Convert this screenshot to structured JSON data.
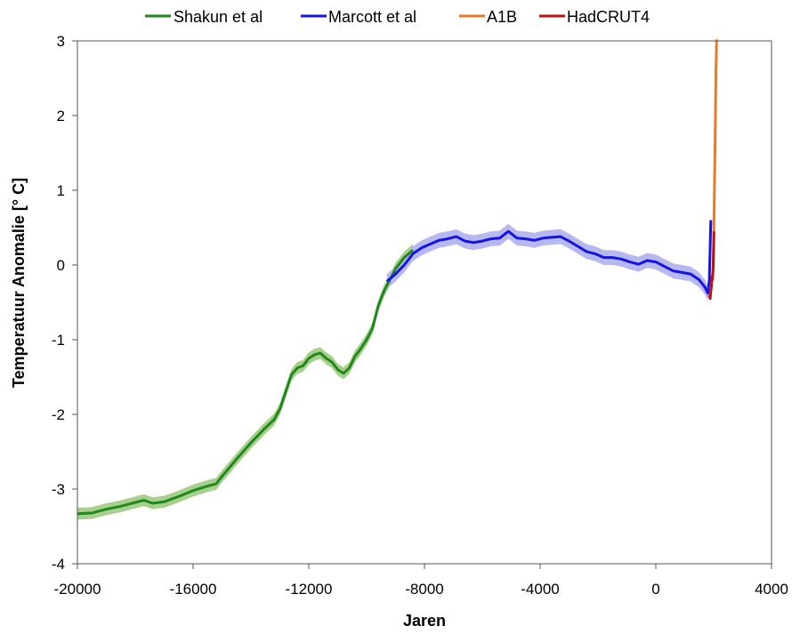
{
  "chart_data": {
    "type": "line",
    "title": "",
    "xlabel": "Jaren",
    "ylabel": "Temperatuur Anomalie [° C]",
    "xlim": [
      -20000,
      4000
    ],
    "ylim": [
      -4,
      3
    ],
    "x_ticks": [
      "-20000",
      "-16000",
      "-12000",
      "-8000",
      "-4000",
      "0",
      "4000"
    ],
    "y_ticks": [
      "3",
      "2",
      "1",
      "0",
      "-1",
      "-2",
      "-3",
      "-4"
    ],
    "grid": false,
    "legend_position": "top",
    "series": [
      {
        "name": "Shakun et al",
        "color": "#1e8a1e",
        "band_color": "#a9cf8c",
        "band_halfwidth": 0.08,
        "x": [
          -20000,
          -19500,
          -19000,
          -18500,
          -18000,
          -17700,
          -17400,
          -17000,
          -16500,
          -16000,
          -15500,
          -15200,
          -15000,
          -14500,
          -14000,
          -13500,
          -13200,
          -13000,
          -12800,
          -12600,
          -12400,
          -12200,
          -12000,
          -11800,
          -11600,
          -11400,
          -11200,
          -11000,
          -10800,
          -10600,
          -10400,
          -10200,
          -10000,
          -9800,
          -9600,
          -9400,
          -9200,
          -9000,
          -8700,
          -8400
        ],
        "y": [
          -3.33,
          -3.32,
          -3.27,
          -3.23,
          -3.18,
          -3.15,
          -3.19,
          -3.17,
          -3.1,
          -3.02,
          -2.96,
          -2.93,
          -2.83,
          -2.6,
          -2.38,
          -2.18,
          -2.07,
          -1.93,
          -1.7,
          -1.47,
          -1.38,
          -1.35,
          -1.25,
          -1.2,
          -1.18,
          -1.25,
          -1.3,
          -1.4,
          -1.45,
          -1.38,
          -1.22,
          -1.12,
          -1.0,
          -0.85,
          -0.55,
          -0.35,
          -0.2,
          -0.05,
          0.1,
          0.2
        ]
      },
      {
        "name": "Marcott et al",
        "color": "#1414e6",
        "band_color": "#b8b8f0",
        "band_halfwidth": 0.1,
        "x": [
          -9300,
          -9000,
          -8700,
          -8400,
          -8100,
          -7800,
          -7500,
          -7200,
          -6900,
          -6600,
          -6300,
          -6000,
          -5700,
          -5400,
          -5100,
          -4800,
          -4500,
          -4200,
          -3900,
          -3600,
          -3300,
          -3000,
          -2700,
          -2400,
          -2100,
          -1800,
          -1500,
          -1200,
          -900,
          -600,
          -300,
          0,
          300,
          600,
          900,
          1200,
          1500,
          1700,
          1800,
          1850,
          1900
        ],
        "y": [
          -0.22,
          -0.12,
          0.0,
          0.15,
          0.23,
          0.28,
          0.33,
          0.35,
          0.38,
          0.32,
          0.3,
          0.32,
          0.35,
          0.36,
          0.45,
          0.36,
          0.35,
          0.33,
          0.36,
          0.37,
          0.38,
          0.32,
          0.25,
          0.18,
          0.15,
          0.1,
          0.1,
          0.08,
          0.04,
          0.01,
          0.06,
          0.04,
          -0.02,
          -0.08,
          -0.1,
          -0.12,
          -0.2,
          -0.3,
          -0.38,
          -0.2,
          0.6
        ]
      },
      {
        "name": "A1B",
        "color": "#e87a28",
        "x": [
          1950,
          1980,
          2000,
          2020,
          2040,
          2060,
          2080,
          2100
        ],
        "y": [
          -0.2,
          0.0,
          0.3,
          0.8,
          1.4,
          2.0,
          2.6,
          3.1
        ]
      },
      {
        "name": "HadCRUT4",
        "color": "#c01010",
        "x": [
          1850,
          1880,
          1900,
          1920,
          1940,
          1960,
          1980,
          2000,
          2010
        ],
        "y": [
          -0.4,
          -0.45,
          -0.35,
          -0.3,
          -0.15,
          -0.2,
          -0.05,
          0.25,
          0.45
        ]
      }
    ]
  }
}
